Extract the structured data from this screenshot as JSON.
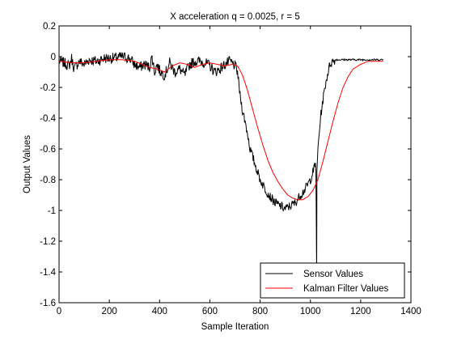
{
  "chart_data": {
    "type": "line",
    "title": "X acceleration q = 0.0025, r = 5",
    "xlabel": "Sample Iteration",
    "ylabel": "Output Values",
    "xlim": [
      0,
      1400
    ],
    "ylim": [
      -1.6,
      0.2
    ],
    "xticks": [
      0,
      200,
      400,
      600,
      800,
      1000,
      1200,
      1400
    ],
    "yticks": [
      0.2,
      0,
      -0.2,
      -0.4,
      -0.6,
      -0.8,
      -1,
      -1.2,
      -1.4,
      -1.6
    ],
    "xtick_labels": [
      "0",
      "200",
      "400",
      "600",
      "800",
      "1000",
      "1200",
      "1400"
    ],
    "ytick_labels": [
      "0.2",
      "0",
      "-0.2",
      "-0.4",
      "-0.6",
      "-0.8",
      "-1",
      "-1.2",
      "-1.4",
      "-1.6"
    ],
    "grid": false,
    "legend_position": "bottom-right",
    "series": [
      {
        "name": "Sensor Values",
        "color": "#000000",
        "noisy": true,
        "x": [
          0,
          20,
          40,
          50,
          60,
          80,
          100,
          120,
          150,
          180,
          200,
          220,
          250,
          280,
          300,
          320,
          340,
          360,
          370,
          380,
          390,
          400,
          420,
          440,
          460,
          480,
          500,
          520,
          540,
          560,
          580,
          600,
          620,
          640,
          660,
          680,
          700,
          710,
          720,
          730,
          740,
          750,
          760,
          780,
          800,
          820,
          840,
          860,
          880,
          900,
          920,
          940,
          960,
          980,
          1000,
          1010,
          1020,
          1024,
          1025,
          1026,
          1030,
          1040,
          1050,
          1060,
          1070,
          1080,
          1100,
          1120,
          1150,
          1200,
          1250,
          1290
        ],
        "y": [
          -0.03,
          -0.04,
          -0.06,
          -0.01,
          -0.08,
          -0.03,
          -0.05,
          -0.02,
          -0.03,
          -0.01,
          -0.01,
          -0.01,
          0.0,
          -0.01,
          -0.05,
          -0.07,
          -0.05,
          -0.07,
          0.0,
          -0.1,
          -0.05,
          -0.09,
          -0.12,
          -0.04,
          -0.1,
          -0.08,
          -0.12,
          -0.05,
          -0.03,
          -0.03,
          -0.04,
          -0.06,
          -0.1,
          -0.08,
          -0.05,
          -0.03,
          -0.06,
          -0.1,
          -0.25,
          -0.35,
          -0.42,
          -0.5,
          -0.6,
          -0.7,
          -0.8,
          -0.86,
          -0.91,
          -0.95,
          -0.97,
          -0.99,
          -0.97,
          -0.95,
          -0.9,
          -0.86,
          -0.8,
          -0.75,
          -0.7,
          -0.8,
          -1.42,
          -0.72,
          -0.6,
          -0.4,
          -0.28,
          -0.18,
          -0.1,
          -0.04,
          -0.02,
          -0.02,
          -0.02,
          -0.02,
          -0.02,
          -0.02
        ]
      },
      {
        "name": "Kalman Filter Values",
        "color": "#ff0000",
        "noisy": false,
        "x": [
          0,
          50,
          100,
          150,
          200,
          250,
          300,
          330,
          360,
          390,
          420,
          450,
          480,
          510,
          540,
          570,
          600,
          630,
          660,
          690,
          710,
          730,
          750,
          770,
          790,
          810,
          830,
          850,
          870,
          890,
          910,
          930,
          950,
          970,
          990,
          1010,
          1030,
          1050,
          1070,
          1090,
          1110,
          1130,
          1150,
          1170,
          1200,
          1230,
          1260,
          1290
        ],
        "y": [
          -0.03,
          -0.04,
          -0.04,
          -0.03,
          -0.02,
          -0.02,
          -0.03,
          -0.05,
          -0.07,
          -0.08,
          -0.1,
          -0.06,
          -0.04,
          -0.05,
          -0.07,
          -0.05,
          -0.04,
          -0.05,
          -0.06,
          -0.05,
          -0.06,
          -0.12,
          -0.22,
          -0.34,
          -0.46,
          -0.57,
          -0.67,
          -0.75,
          -0.81,
          -0.86,
          -0.9,
          -0.92,
          -0.93,
          -0.93,
          -0.91,
          -0.87,
          -0.8,
          -0.68,
          -0.55,
          -0.42,
          -0.3,
          -0.2,
          -0.13,
          -0.08,
          -0.05,
          -0.03,
          -0.03,
          -0.03
        ]
      }
    ]
  }
}
